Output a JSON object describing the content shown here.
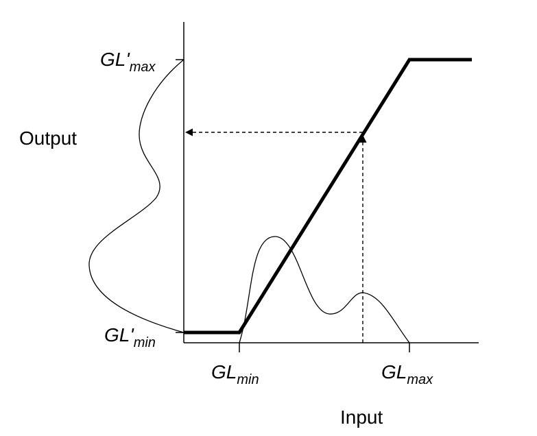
{
  "labels": {
    "output": "Output",
    "input": "Input",
    "gl_min": {
      "base": "GL",
      "sub": "min"
    },
    "gl_max": {
      "base": "GL",
      "sub": "max"
    },
    "gl_prime_min": {
      "base": "GL'",
      "sub": "min"
    },
    "gl_prime_max": {
      "base": "GL'",
      "sub": "max"
    }
  },
  "colors": {
    "stroke": "#000000",
    "background": "#ffffff"
  }
}
